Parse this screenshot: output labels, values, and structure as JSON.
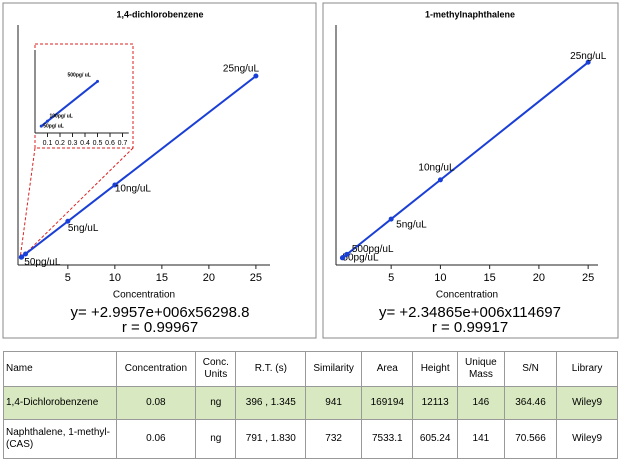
{
  "chart_data": [
    {
      "type": "scatter",
      "title": "1,4-dichlorobenzene",
      "xlabel": "Concentration",
      "color": "#1a3fd6",
      "x": [
        0.05,
        0.1,
        0.5,
        5,
        10,
        25
      ],
      "values": [
        206000,
        356000,
        1554000,
        15035000,
        30014000,
        74949000
      ],
      "point_labels": [
        "50pg/uL",
        null,
        null,
        "5ng/uL",
        "10ng/uL",
        "25ng/uL"
      ],
      "xlim": [
        -0.3,
        26.5
      ],
      "xticks": [
        5,
        10,
        15,
        20,
        25
      ],
      "ylim": [
        -3000000,
        96000000
      ],
      "equation": "y= +2.9957e+006x56298.8",
      "r_text": "r = 0.99967"
    },
    {
      "type": "scatter",
      "title": "1-methylnaphthalene",
      "xlabel": "Concentration",
      "color": "#1a3fd6",
      "x": [
        0.05,
        0.1,
        0.5,
        5,
        10,
        25
      ],
      "values": [
        232000,
        350000,
        1289000,
        11858000,
        23601000,
        58831000
      ],
      "point_labels": [
        "50pg/uL",
        null,
        "500pg/uL",
        "5ng/uL",
        "10ng/uL",
        "25ng/uL"
      ],
      "xlim": [
        -0.6,
        26
      ],
      "xticks": [
        5,
        10,
        15,
        20,
        25
      ],
      "ylim": [
        -1900000,
        70000000
      ],
      "equation": "y= +2.34865e+006x114697",
      "r_text": "r = 0.99917"
    },
    {
      "type": "scatter",
      "color": "#1a3fd6",
      "x": [
        0.05,
        0.1,
        0.5
      ],
      "values": [
        206000,
        356000,
        1554000
      ],
      "point_labels": [
        "50pg/ uL",
        "100pg/ uL",
        "500pg/ uL"
      ],
      "xlim": [
        0,
        0.75
      ],
      "xticks": [
        0.1,
        0.2,
        0.3,
        0.4,
        0.5,
        0.6,
        0.7
      ],
      "ylim": [
        0,
        2500000
      ]
    }
  ],
  "table": {
    "header": [
      "Name",
      "Concentration",
      "Conc. Units",
      "R.T. (s)",
      "Similarity",
      "Area",
      "Height",
      "Unique Mass",
      "S/N",
      "Library"
    ],
    "rows": [
      [
        "1,4-Dichlorobenzene",
        "0.08",
        "ng",
        "396 , 1.345",
        "941",
        "169194",
        "12113",
        "146",
        "364.46",
        "Wiley9"
      ],
      [
        "Naphthalene, 1-methyl-(CAS)",
        "0.06",
        "ng",
        "791 , 1.830",
        "732",
        "7533.1",
        "605.24",
        "141",
        "70.566",
        "Wiley9"
      ]
    ]
  }
}
